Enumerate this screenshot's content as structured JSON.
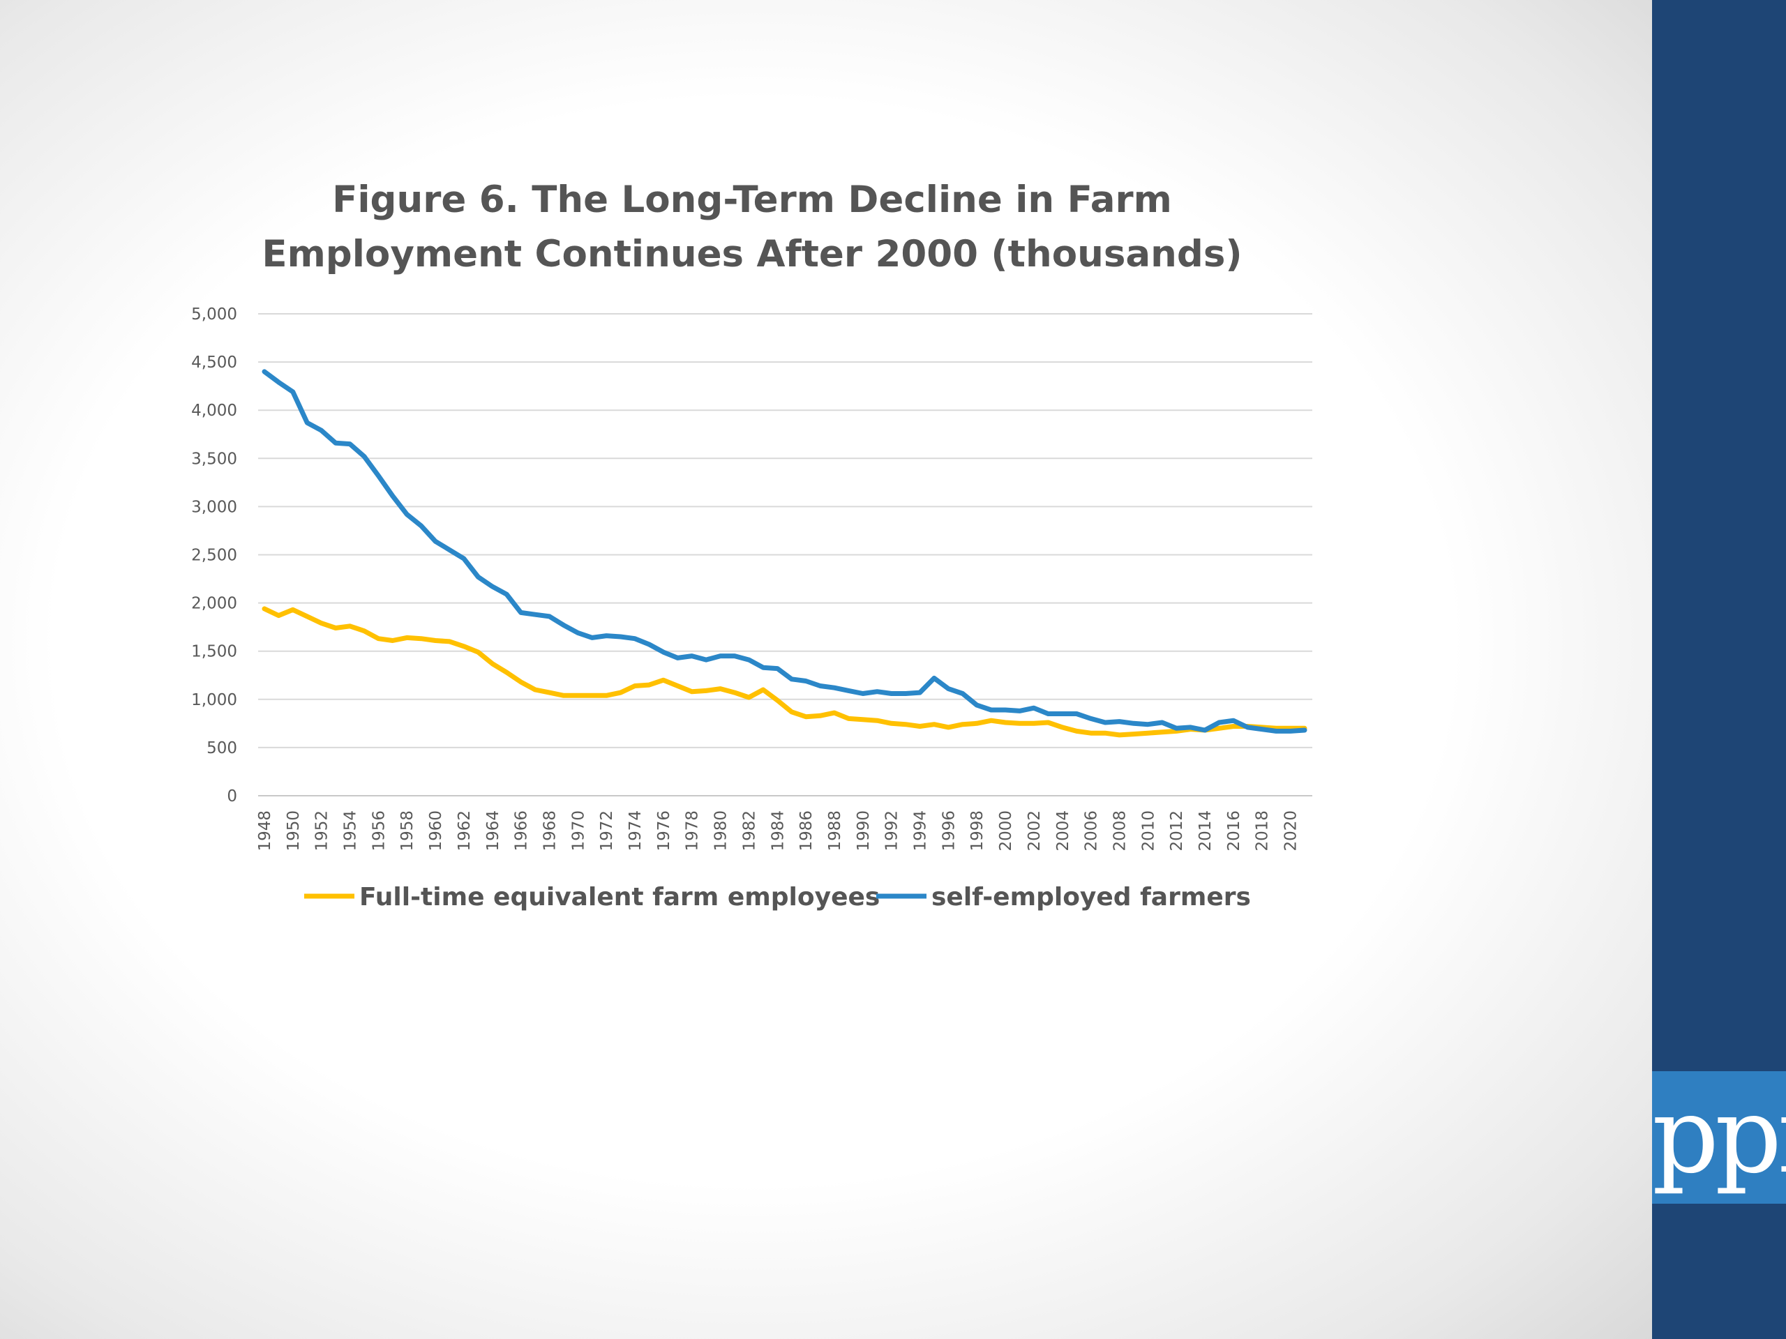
{
  "slide": {
    "logo_text": "ppi",
    "sidebar_color": "#1e4575",
    "logo_box_color": "#2f7fc1"
  },
  "chart_data": {
    "type": "line",
    "title": "Figure 6. The Long-Term Decline in Farm Employment Continues After 2000 (thousands)",
    "xlabel": "",
    "ylabel": "",
    "ylim": [
      0,
      5000
    ],
    "yticks": [
      0,
      500,
      1000,
      1500,
      2000,
      2500,
      3000,
      3500,
      4000,
      4500,
      5000
    ],
    "ytick_labels": [
      "0",
      "500",
      "1,000",
      "1,500",
      "2,000",
      "2,500",
      "3,000",
      "3,500",
      "4,000",
      "4,500",
      "5,000"
    ],
    "x": [
      1948,
      1949,
      1950,
      1951,
      1952,
      1953,
      1954,
      1955,
      1956,
      1957,
      1958,
      1959,
      1960,
      1961,
      1962,
      1963,
      1964,
      1965,
      1966,
      1967,
      1968,
      1969,
      1970,
      1971,
      1972,
      1973,
      1974,
      1975,
      1976,
      1977,
      1978,
      1979,
      1980,
      1981,
      1982,
      1983,
      1984,
      1985,
      1986,
      1987,
      1988,
      1989,
      1990,
      1991,
      1992,
      1993,
      1994,
      1995,
      1996,
      1997,
      1998,
      1999,
      2000,
      2001,
      2002,
      2003,
      2004,
      2005,
      2006,
      2007,
      2008,
      2009,
      2010,
      2011,
      2012,
      2013,
      2014,
      2015,
      2016,
      2017,
      2018,
      2019,
      2020,
      2021
    ],
    "xtick_labels": [
      "1948",
      "1950",
      "1952",
      "1954",
      "1956",
      "1958",
      "1960",
      "1962",
      "1964",
      "1966",
      "1968",
      "1970",
      "1972",
      "1974",
      "1976",
      "1978",
      "1980",
      "1982",
      "1984",
      "1986",
      "1988",
      "1990",
      "1992",
      "1994",
      "1996",
      "1998",
      "2000",
      "2002",
      "2004",
      "2006",
      "2008",
      "2010",
      "2012",
      "2014",
      "2016",
      "2018",
      "2020"
    ],
    "grid": true,
    "legend_position": "bottom",
    "series": [
      {
        "name": "Full-time equivalent farm employees",
        "color": "#ffc000",
        "values": [
          1940,
          1870,
          1930,
          1860,
          1790,
          1740,
          1760,
          1710,
          1630,
          1610,
          1640,
          1630,
          1610,
          1600,
          1550,
          1490,
          1370,
          1280,
          1180,
          1100,
          1070,
          1040,
          1040,
          1040,
          1040,
          1070,
          1140,
          1150,
          1200,
          1140,
          1080,
          1090,
          1110,
          1070,
          1020,
          1100,
          990,
          870,
          820,
          830,
          860,
          800,
          790,
          780,
          750,
          740,
          720,
          740,
          710,
          740,
          750,
          780,
          760,
          750,
          750,
          760,
          710,
          670,
          650,
          650,
          630,
          640,
          650,
          660,
          670,
          690,
          680,
          700,
          720,
          720,
          710,
          700,
          700,
          700
        ]
      },
      {
        "name": "self-employed farmers",
        "color": "#2b87c8",
        "values": [
          4400,
          4290,
          4190,
          3870,
          3790,
          3660,
          3650,
          3520,
          3320,
          3110,
          2920,
          2800,
          2640,
          2550,
          2460,
          2270,
          2170,
          2090,
          1900,
          1880,
          1860,
          1770,
          1690,
          1640,
          1660,
          1650,
          1630,
          1570,
          1490,
          1430,
          1450,
          1410,
          1450,
          1450,
          1410,
          1330,
          1320,
          1210,
          1190,
          1140,
          1120,
          1090,
          1060,
          1080,
          1060,
          1060,
          1070,
          1220,
          1110,
          1060,
          940,
          890,
          890,
          880,
          910,
          850,
          850,
          850,
          800,
          760,
          770,
          750,
          740,
          760,
          700,
          710,
          680,
          760,
          780,
          710,
          690,
          670,
          670,
          680
        ]
      }
    ]
  }
}
